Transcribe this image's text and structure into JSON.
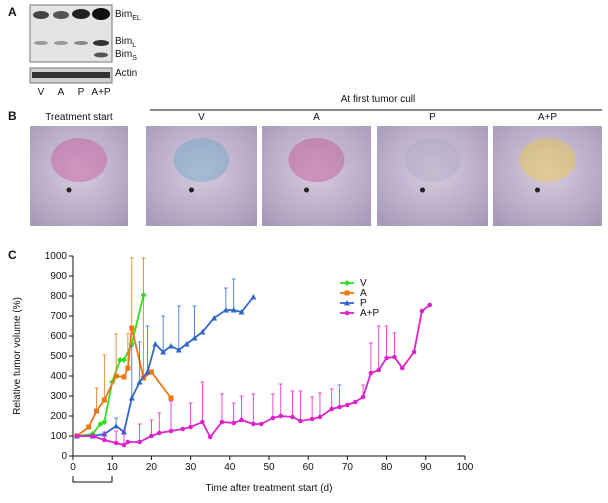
{
  "panel_a": {
    "label": "A",
    "bands": [
      {
        "name": "Bim",
        "sub": "EL"
      },
      {
        "name": "Bim",
        "sub": "L"
      },
      {
        "name": "Bim",
        "sub": "S"
      },
      {
        "name": "Actin"
      }
    ],
    "lanes": [
      "V",
      "A",
      "P",
      "A+P"
    ]
  },
  "panel_b": {
    "label": "B",
    "header": "At first tumor cull",
    "columns": [
      "Treatment start",
      "V",
      "A",
      "P",
      "A+P"
    ]
  },
  "chart_data": {
    "type": "line",
    "panel_label": "C",
    "xlabel": "Time after treatment start (d)",
    "ylabel": "Relative tumor volume (%)",
    "xlim": [
      0,
      100
    ],
    "xticks": [
      0,
      10,
      20,
      30,
      40,
      50,
      60,
      70,
      80,
      90,
      100
    ],
    "ylim": [
      0,
      1000
    ],
    "yticks": [
      0,
      100,
      200,
      300,
      400,
      500,
      600,
      700,
      800,
      900,
      1000
    ],
    "legend": "top",
    "series": [
      {
        "name": "V",
        "color": "#33dd22",
        "marker": "diamond",
        "x": [
          1,
          5,
          7,
          8,
          10,
          12,
          13,
          15,
          18
        ],
        "values": [
          100,
          110,
          160,
          170,
          370,
          480,
          480,
          560,
          805
        ]
      },
      {
        "name": "A",
        "color": "#ee7711",
        "marker": "square",
        "x": [
          1,
          4,
          6,
          8,
          11,
          13,
          14,
          15,
          18,
          20,
          25
        ],
        "values": [
          100,
          145,
          225,
          280,
          400,
          395,
          440,
          640,
          390,
          420,
          290
        ],
        "errors": [
          null,
          null,
          115,
          225,
          210,
          null,
          170,
          350,
          600,
          null,
          null
        ]
      },
      {
        "name": "P",
        "color": "#3366cc",
        "marker": "triangle",
        "x": [
          1,
          5,
          8,
          11,
          13,
          15,
          17,
          19,
          21,
          23,
          25,
          27,
          29,
          31,
          33,
          36,
          39,
          41,
          43,
          46
        ],
        "values": [
          100,
          100,
          110,
          150,
          120,
          290,
          370,
          420,
          560,
          520,
          550,
          530,
          560,
          590,
          620,
          690,
          730,
          730,
          720,
          795
        ],
        "errors": [
          null,
          null,
          null,
          40,
          null,
          260,
          200,
          230,
          null,
          180,
          null,
          220,
          null,
          160,
          null,
          null,
          110,
          155,
          null,
          null
        ]
      },
      {
        "name": "A+P",
        "color": "#dd22cc",
        "marker": "circle",
        "x": [
          1,
          5,
          8,
          11,
          13,
          14,
          17,
          20,
          22,
          25,
          28,
          30,
          33,
          35,
          38,
          41,
          43,
          46,
          48,
          51,
          53,
          56,
          58,
          61,
          63,
          66,
          68,
          70,
          72,
          74,
          76,
          78,
          80,
          82,
          84,
          87,
          89,
          91
        ],
        "values": [
          100,
          100,
          80,
          65,
          55,
          70,
          70,
          100,
          115,
          125,
          135,
          145,
          170,
          95,
          170,
          165,
          180,
          160,
          160,
          190,
          200,
          195,
          175,
          185,
          195,
          235,
          245,
          255,
          270,
          295,
          415,
          430,
          490,
          495,
          440,
          520,
          725,
          755
        ],
        "errors": [
          null,
          null,
          40,
          60,
          70,
          null,
          90,
          80,
          100,
          150,
          null,
          120,
          200,
          null,
          140,
          100,
          120,
          150,
          null,
          120,
          160,
          130,
          150,
          110,
          120,
          100,
          110,
          null,
          null,
          60,
          150,
          220,
          160,
          120,
          null,
          null,
          null,
          null
        ]
      }
    ]
  }
}
